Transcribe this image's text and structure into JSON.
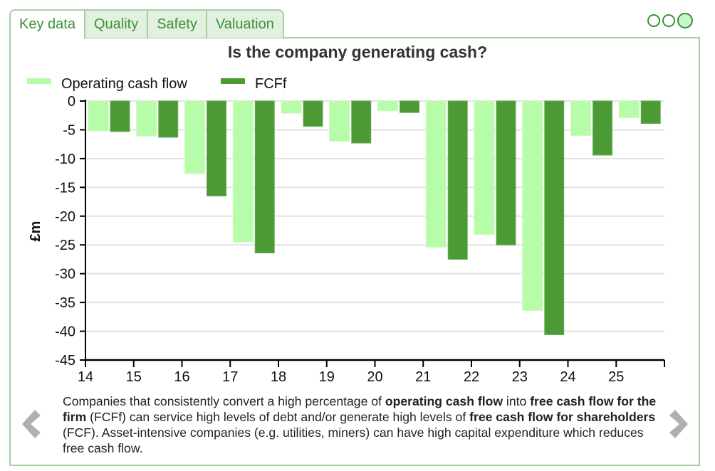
{
  "tabs": [
    {
      "label": "Key data",
      "active": true
    },
    {
      "label": "Quality",
      "active": false
    },
    {
      "label": "Safety",
      "active": false
    },
    {
      "label": "Valuation",
      "active": false
    }
  ],
  "pager": {
    "count": 3,
    "active_index": 2
  },
  "colors": {
    "operating": "#b7fca8",
    "fcff": "#4c9a34",
    "accent": "#3a9238",
    "border": "#a6d0a2",
    "nav_arrow": "#b0b0b0"
  },
  "chart_data": {
    "type": "bar",
    "title": "Is the company generating cash?",
    "xlabel": "",
    "ylabel": "£m",
    "categories": [
      "14",
      "15",
      "16",
      "17",
      "18",
      "19",
      "20",
      "21",
      "22",
      "23",
      "24",
      "25"
    ],
    "x_ticks": [
      "14",
      "15",
      "16",
      "17",
      "18",
      "19",
      "20",
      "21",
      "22",
      "23",
      "24",
      "25"
    ],
    "y_ticks": [
      0,
      -5,
      -10,
      -15,
      -20,
      -25,
      -30,
      -35,
      -40,
      -45
    ],
    "ylim": [
      -45,
      0
    ],
    "grid": true,
    "legend_position": "top-left",
    "series": [
      {
        "name": "Operating cash flow",
        "color": "#b7fca8",
        "values": [
          -5.2,
          -6.1,
          -12.6,
          -24.5,
          -2.1,
          -7.0,
          -1.7,
          -25.4,
          -23.2,
          -36.4,
          -6.0,
          -2.9
        ]
      },
      {
        "name": "FCFf",
        "color": "#4c9a34",
        "values": [
          -5.3,
          -6.3,
          -16.5,
          -26.4,
          -4.4,
          -7.3,
          -2.0,
          -27.5,
          -25.0,
          -40.6,
          -9.4,
          -3.9
        ]
      }
    ]
  },
  "description": {
    "parts": [
      {
        "text": "Companies that consistently convert a high percentage of ",
        "bold": false
      },
      {
        "text": "operating cash flow",
        "bold": true
      },
      {
        "text": " into ",
        "bold": false
      },
      {
        "text": "free cash flow for the firm",
        "bold": true
      },
      {
        "text": " (FCFf) can service high levels of debt and/or generate high levels of ",
        "bold": false
      },
      {
        "text": "free cash flow for shareholders",
        "bold": true
      },
      {
        "text": " (FCF). Asset-intensive companies (e.g. utilities, miners) can have high capital expenditure which reduces free cash flow.",
        "bold": false
      }
    ]
  },
  "nav": {
    "prev": "chevron-left",
    "next": "chevron-right"
  }
}
